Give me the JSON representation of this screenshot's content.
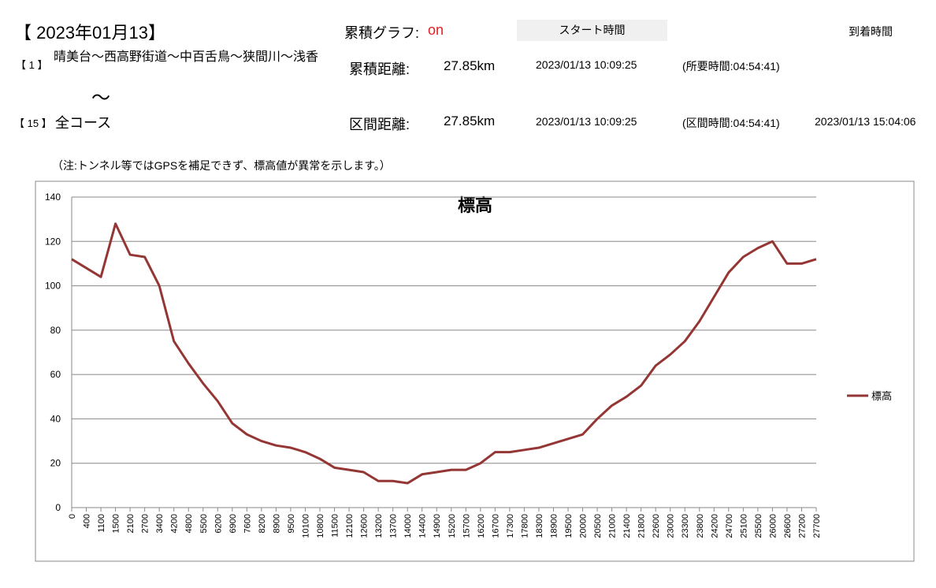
{
  "header": {
    "date": "【 2023年01月13】",
    "graph_label": "累積グラフ:",
    "graph_value": "on",
    "start_time_label": "スタート時間",
    "arrival_time_label": "到着時間"
  },
  "route": {
    "from_index": "【 1 】",
    "from_name": "晴美台～西高野街道～中百舌鳥～狭間川～浅香",
    "tilde": "～",
    "to_index": "【 15 】",
    "to_name": "全コース"
  },
  "rows": [
    {
      "label": "累積距離:",
      "distance": "27.85km",
      "start": "2023/01/13 10:09:25",
      "duration": "(所要時間:04:54:41)"
    },
    {
      "label": "区間距離:",
      "distance": "27.85km",
      "start": "2023/01/13 10:09:25",
      "duration": "(区間時間:04:54:41)",
      "arrival": "2023/01/13 15:04:06"
    }
  ],
  "note": "（注:トンネル等ではGPSを補足できず、標高値が異常を示します。）",
  "chart_data": {
    "type": "line",
    "title": "標高",
    "categories": [
      "0",
      "400",
      "1100",
      "1500",
      "2100",
      "2700",
      "3400",
      "4200",
      "4800",
      "5500",
      "6200",
      "6900",
      "7600",
      "8200",
      "8900",
      "9500",
      "10100",
      "10800",
      "11500",
      "12100",
      "12600",
      "13200",
      "13700",
      "14000",
      "14400",
      "14900",
      "15200",
      "15700",
      "16200",
      "16700",
      "17300",
      "17800",
      "18300",
      "18900",
      "19500",
      "20000",
      "20500",
      "21000",
      "21400",
      "21800",
      "22600",
      "23000",
      "23300",
      "23800",
      "24200",
      "24700",
      "25100",
      "25500",
      "26000",
      "26600",
      "27200",
      "27700"
    ],
    "series": [
      {
        "name": "標高",
        "color": "#943634",
        "values": [
          112,
          108,
          104,
          128,
          114,
          113,
          100,
          75,
          65,
          56,
          48,
          38,
          33,
          30,
          28,
          27,
          25,
          22,
          18,
          17,
          16,
          12,
          12,
          11,
          15,
          16,
          17,
          17,
          20,
          25,
          25,
          26,
          27,
          29,
          31,
          33,
          40,
          46,
          50,
          55,
          64,
          69,
          75,
          84,
          95,
          106,
          113,
          117,
          120,
          110,
          110,
          112
        ]
      }
    ],
    "ylim": [
      0,
      140
    ],
    "yticks": [
      0,
      20,
      40,
      60,
      80,
      100,
      120,
      140
    ],
    "grid": true,
    "legend": "right"
  }
}
